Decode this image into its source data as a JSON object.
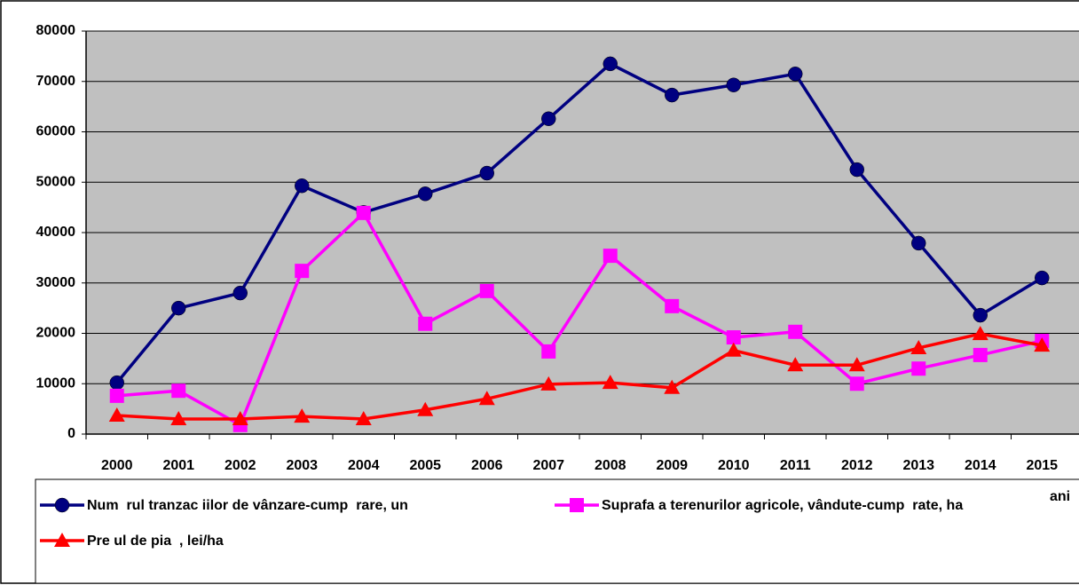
{
  "chart_data": {
    "type": "line",
    "categories": [
      "2000",
      "2001",
      "2002",
      "2003",
      "2004",
      "2005",
      "2006",
      "2007",
      "2008",
      "2009",
      "2010",
      "2011",
      "2012",
      "2013",
      "2014",
      "2015"
    ],
    "x_label": "ani",
    "series": [
      {
        "name": "Num  rul tranzac iilor de vânzare-cump  rare, un",
        "color": "#000080",
        "marker": "circle",
        "values": [
          10200,
          25000,
          28000,
          49300,
          44000,
          47700,
          51800,
          62600,
          73500,
          67300,
          69300,
          71500,
          52500,
          37900,
          23600,
          31000
        ]
      },
      {
        "name": "Suprafa a terenurilor agricole, vândute-cump  rate, ha",
        "color": "#ff00ff",
        "marker": "square",
        "values": [
          7600,
          8600,
          1800,
          32400,
          43900,
          21900,
          28400,
          16400,
          35400,
          25400,
          19200,
          20300,
          10000,
          13000,
          15700,
          18500
        ]
      },
      {
        "name": "Pre ul de pia  , lei/ha",
        "color": "#ff0000",
        "marker": "triangle",
        "values": [
          3700,
          3000,
          3000,
          3500,
          3000,
          4800,
          7000,
          9900,
          10200,
          9200,
          16600,
          13700,
          13700,
          17100,
          19900,
          17600
        ]
      }
    ],
    "ylim": [
      0,
      80000
    ],
    "yticks": [
      0,
      10000,
      20000,
      30000,
      40000,
      50000,
      60000,
      70000,
      80000
    ],
    "grid": true,
    "plot_background": "#c0c0c0",
    "legend": "bottom"
  }
}
